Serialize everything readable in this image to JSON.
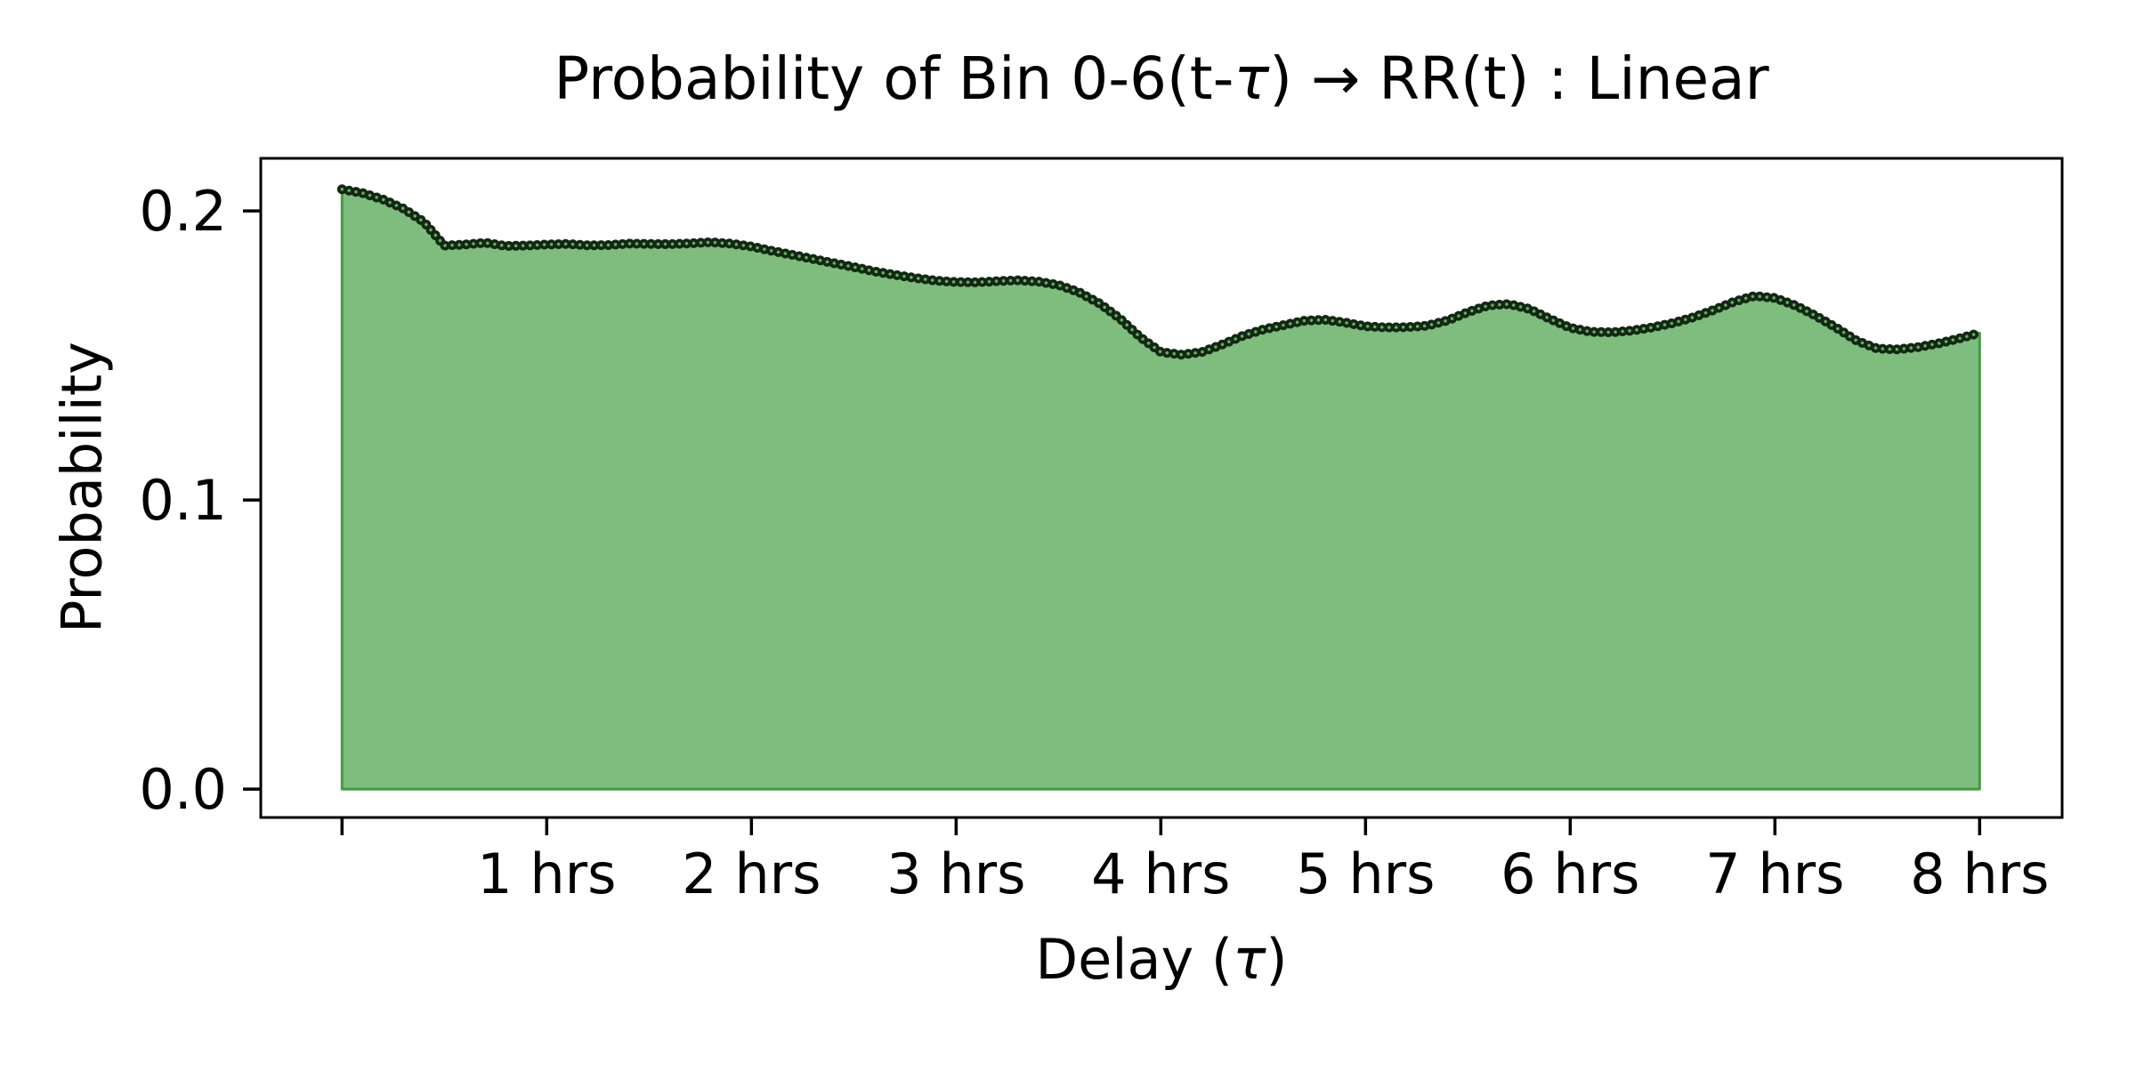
{
  "chart_data": {
    "type": "area",
    "title": "Probability of Bin 0-6(t-τ) → RR(t) : Linear",
    "title_parts": [
      "Probability of Bin 0-6(t-",
      "τ",
      ") → RR(t) : Linear"
    ],
    "xlabel": "Delay (τ)",
    "xlabel_parts": [
      "Delay (",
      "τ",
      ")"
    ],
    "ylabel": "Probability",
    "x_unit": "hrs",
    "xlim": [
      -0.397,
      8.403
    ],
    "ylim": [
      -0.0098,
      0.2182
    ],
    "grid": false,
    "legend": null,
    "xticks": [
      {
        "value": 0,
        "label": ""
      },
      {
        "value": 1,
        "label": "1 hrs"
      },
      {
        "value": 2,
        "label": "2 hrs"
      },
      {
        "value": 3,
        "label": "3 hrs"
      },
      {
        "value": 4,
        "label": "4 hrs"
      },
      {
        "value": 5,
        "label": "5 hrs"
      },
      {
        "value": 6,
        "label": "6 hrs"
      },
      {
        "value": 7,
        "label": "7 hrs"
      },
      {
        "value": 8,
        "label": "8 hrs"
      }
    ],
    "yticks": [
      {
        "value": 0.0,
        "label": "0.0"
      },
      {
        "value": 0.1,
        "label": "0.1"
      },
      {
        "value": 0.2,
        "label": "0.2"
      }
    ],
    "x": [
      0.0,
      0.1,
      0.2,
      0.3,
      0.4,
      0.5,
      0.6,
      0.7,
      0.8,
      0.9,
      1.0,
      1.1,
      1.2,
      1.3,
      1.4,
      1.5,
      1.6,
      1.7,
      1.8,
      1.9,
      2.0,
      2.1,
      2.2,
      2.3,
      2.4,
      2.5,
      2.6,
      2.7,
      2.8,
      2.9,
      3.0,
      3.1,
      3.2,
      3.3,
      3.4,
      3.5,
      3.6,
      3.7,
      3.8,
      3.9,
      4.0,
      4.1,
      4.2,
      4.3,
      4.4,
      4.5,
      4.6,
      4.7,
      4.8,
      4.9,
      5.0,
      5.1,
      5.2,
      5.3,
      5.4,
      5.5,
      5.6,
      5.7,
      5.8,
      5.9,
      6.0,
      6.1,
      6.2,
      6.3,
      6.4,
      6.5,
      6.6,
      6.7,
      6.8,
      6.9,
      7.0,
      7.1,
      7.2,
      7.3,
      7.4,
      7.5,
      7.6,
      7.7,
      7.8,
      7.9,
      8.0
    ],
    "y": [
      0.2075,
      0.2062,
      0.204,
      0.2008,
      0.1962,
      0.188,
      0.1884,
      0.189,
      0.1879,
      0.188,
      0.1884,
      0.1886,
      0.1881,
      0.1882,
      0.1887,
      0.1886,
      0.1885,
      0.1888,
      0.1892,
      0.1887,
      0.1877,
      0.1862,
      0.1848,
      0.1834,
      0.182,
      0.1806,
      0.1791,
      0.1779,
      0.1768,
      0.1759,
      0.1754,
      0.1753,
      0.1757,
      0.176,
      0.1756,
      0.1744,
      0.1719,
      0.168,
      0.1628,
      0.1563,
      0.1512,
      0.1503,
      0.1512,
      0.1538,
      0.1568,
      0.159,
      0.1605,
      0.162,
      0.1624,
      0.1614,
      0.1601,
      0.1597,
      0.1598,
      0.1603,
      0.1621,
      0.165,
      0.1673,
      0.1678,
      0.1661,
      0.1627,
      0.1596,
      0.1582,
      0.158,
      0.1586,
      0.1597,
      0.1612,
      0.1632,
      0.1657,
      0.1686,
      0.1706,
      0.1699,
      0.1673,
      0.1637,
      0.1596,
      0.1551,
      0.1524,
      0.1521,
      0.1529,
      0.1542,
      0.1559,
      0.1578
    ],
    "colors": {
      "fill": "#7ebd7e",
      "fill_edge": "#459a45",
      "line_dark": "#132813",
      "line_glint": "#66b066",
      "spine": "#000000",
      "background": "#ffffff"
    },
    "line_style": "beaded-dotted"
  }
}
